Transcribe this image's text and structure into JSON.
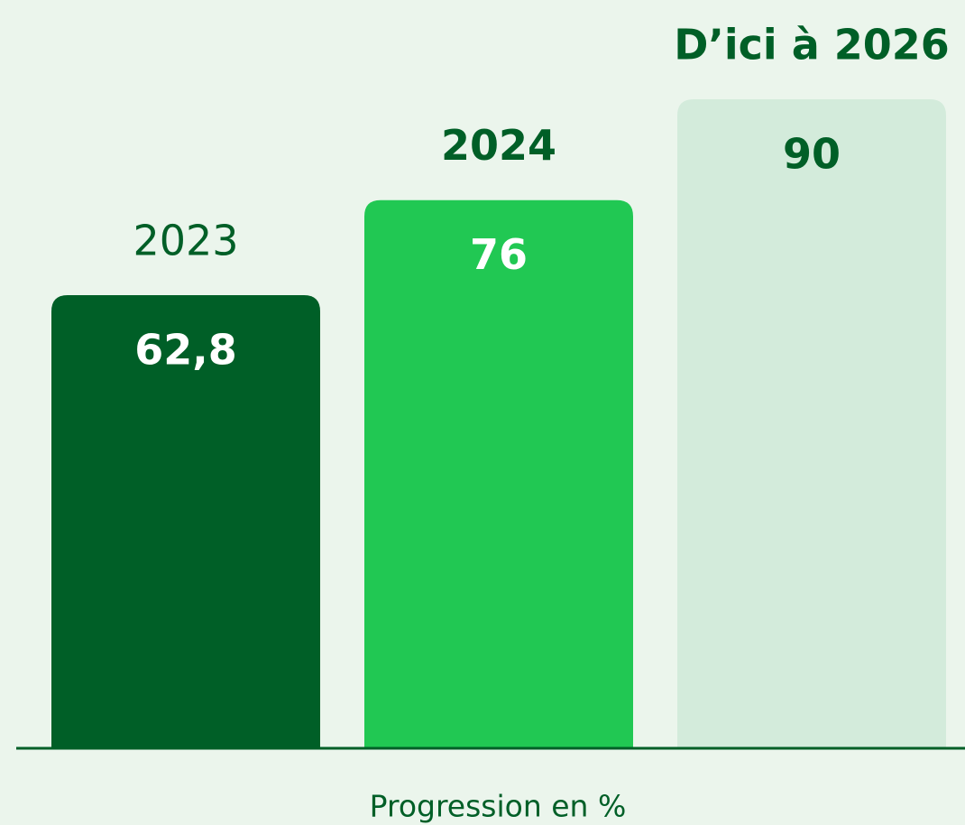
{
  "chart_data": {
    "type": "bar",
    "categories": [
      "2023",
      "2024",
      "D’ici à 2026"
    ],
    "values": [
      62.8,
      76,
      90
    ],
    "value_labels": [
      "62,8",
      "76",
      "90"
    ],
    "colors": [
      "#005f27",
      "#21c853",
      "#d3ebdb"
    ],
    "xlabel": "Progression en %",
    "ylim": [
      0,
      90
    ]
  }
}
